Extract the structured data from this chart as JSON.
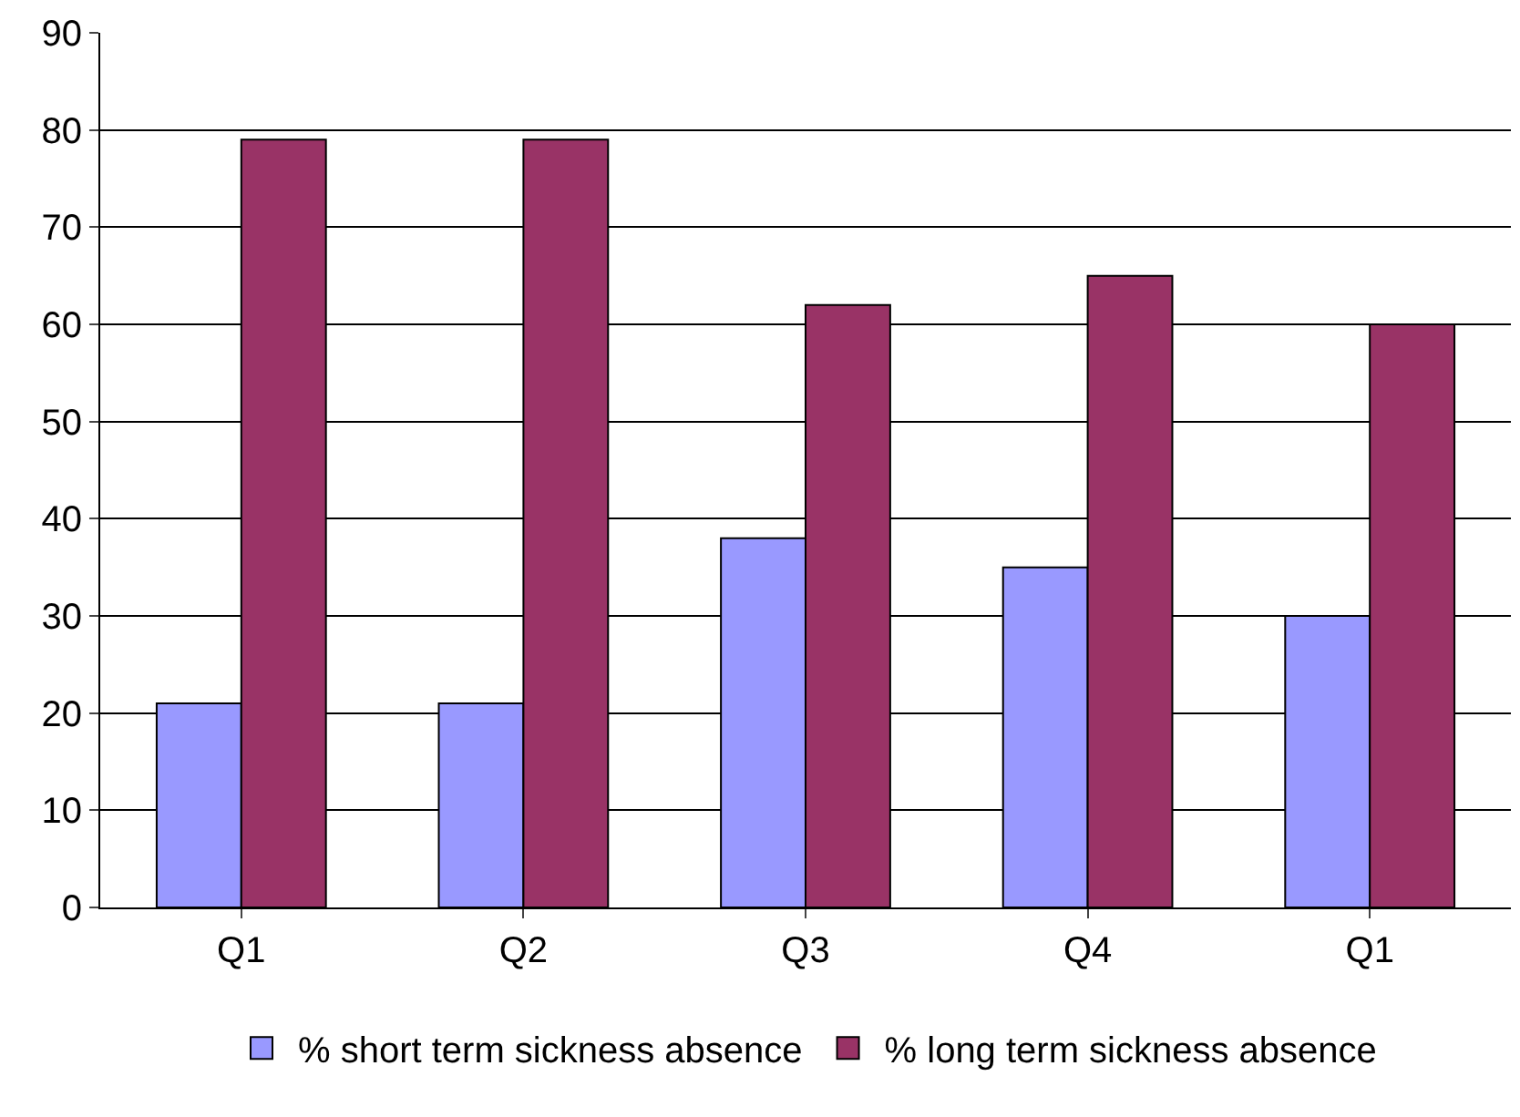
{
  "chart_data": {
    "type": "bar",
    "categories": [
      "Q1",
      "Q2",
      "Q3",
      "Q4",
      "Q1"
    ],
    "series": [
      {
        "name": "% short term sickness absence",
        "color": "#9999ff",
        "values": [
          21,
          21,
          38,
          35,
          30
        ]
      },
      {
        "name": "% long term sickness absence",
        "color": "#993366",
        "values": [
          79,
          79,
          62,
          65,
          60
        ]
      }
    ],
    "ylim": [
      0,
      90
    ],
    "yticks": [
      0,
      10,
      20,
      30,
      40,
      50,
      60,
      70,
      80,
      90
    ],
    "grid": "y",
    "legend": "bottom"
  }
}
